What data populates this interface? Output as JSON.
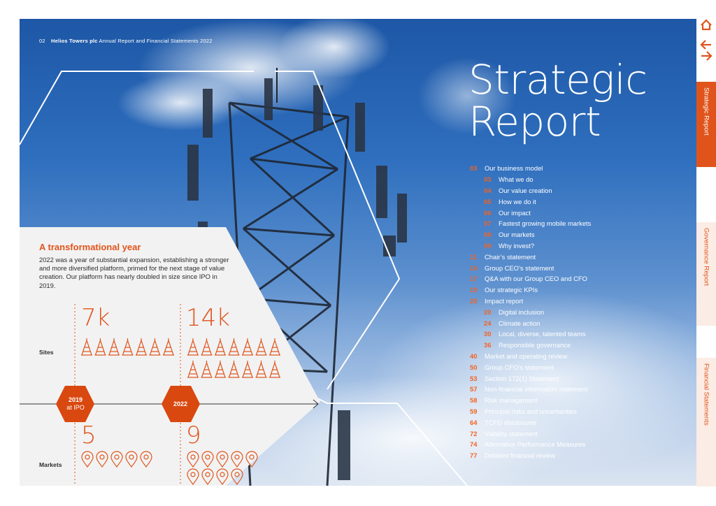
{
  "header": {
    "page_number": "02",
    "company": "Helios Towers plc",
    "document": " Annual Report and Financial Statements 2022"
  },
  "title": {
    "line1": "Strategic",
    "line2": "Report"
  },
  "toc": [
    {
      "num": "03",
      "label": "Our business model",
      "level": 0
    },
    {
      "num": "03",
      "label": "What we do",
      "level": 1
    },
    {
      "num": "04",
      "label": "Our value creation",
      "level": 1
    },
    {
      "num": "05",
      "label": "How we do it",
      "level": 1
    },
    {
      "num": "06",
      "label": "Our impact",
      "level": 1
    },
    {
      "num": "07",
      "label": "Fastest growing mobile markets",
      "level": 1
    },
    {
      "num": "08",
      "label": "Our markets",
      "level": 1
    },
    {
      "num": "09",
      "label": "Why invest?",
      "level": 1
    },
    {
      "num": "11",
      "label": "Chair’s statement",
      "level": 0
    },
    {
      "num": "14",
      "label": "Group CEO’s statement",
      "level": 0
    },
    {
      "num": "17",
      "label": "Q&A with our Group CEO and CFO",
      "level": 0
    },
    {
      "num": "19",
      "label": "Our strategic KPIs",
      "level": 0
    },
    {
      "num": "20",
      "label": "Impact report",
      "level": 0
    },
    {
      "num": "20",
      "label": "Digital inclusion",
      "level": 1
    },
    {
      "num": "24",
      "label": "Climate action",
      "level": 1
    },
    {
      "num": "30",
      "label": "Local, diverse, talented teams",
      "level": 1
    },
    {
      "num": "36",
      "label": "Responsible governance",
      "level": 1
    },
    {
      "num": "40",
      "label": "Market and operating review",
      "level": 0
    },
    {
      "num": "50",
      "label": "Group CFO’s statement",
      "level": 0
    },
    {
      "num": "53",
      "label": "Section 172(1) Statement",
      "level": 0
    },
    {
      "num": "57",
      "label": "Non-financial information statement",
      "level": 0
    },
    {
      "num": "58",
      "label": "Risk management",
      "level": 0
    },
    {
      "num": "59",
      "label": "Principal risks and uncertainties",
      "level": 0
    },
    {
      "num": "64",
      "label": "TCFD disclosures",
      "level": 0
    },
    {
      "num": "72",
      "label": "Viability statement",
      "level": 0
    },
    {
      "num": "74",
      "label": "Alternative Performance Measures",
      "level": 0
    },
    {
      "num": "77",
      "label": "Detailed financial review",
      "level": 0
    }
  ],
  "panel": {
    "heading": "A transformational year",
    "body": "2022 was a year of substantial expansion, establishing a stronger and more diversified platform, primed for the next stage of value creation. Our platform has nearly doubled in size since IPO in 2019."
  },
  "stats": {
    "sites_label": "Sites",
    "markets_label": "Markets",
    "sites_2019": "7k",
    "sites_2022": "14k",
    "markets_2019": "5",
    "markets_2022": "9",
    "year_2019": "2019",
    "year_2019_note": "at IPO",
    "year_2022": "2022",
    "site_icons_2019": 7,
    "site_icons_2022": 14,
    "market_icons_2019": 5,
    "market_icons_2022": 9
  },
  "nav": {
    "icons": [
      "home-icon",
      "back-arrow-icon",
      "forward-arrow-icon"
    ],
    "tabs": [
      "Strategic Report",
      "Governance Report",
      "Financial Statements"
    ],
    "active_tab": "Strategic Report"
  },
  "colors": {
    "accent": "#e0541b",
    "panel": "#f2f2f2",
    "tab_inactive": "#fbece5"
  }
}
